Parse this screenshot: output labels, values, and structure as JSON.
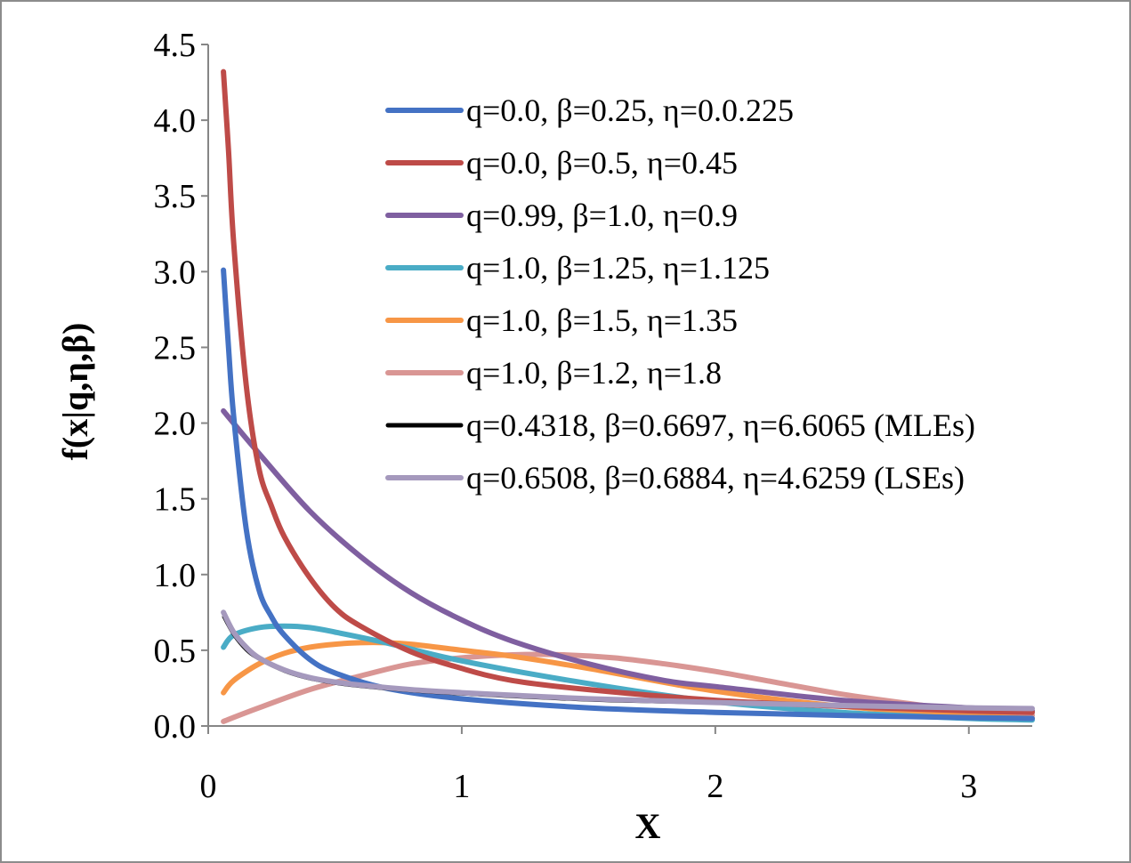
{
  "chart_data": {
    "type": "line",
    "title": "",
    "xlabel": "X",
    "ylabel": "f(x|q,η,β)",
    "xlim": [
      0,
      3.25
    ],
    "ylim": [
      0,
      4.5
    ],
    "xticks": [
      "0",
      "1",
      "2",
      "3"
    ],
    "yticks": [
      "0.0",
      "0.5",
      "1.0",
      "1.5",
      "2.0",
      "2.5",
      "3.0",
      "3.5",
      "4.0",
      "4.5"
    ],
    "grid": false,
    "legend_position": "top-right",
    "series": [
      {
        "name": "q=0.0, β=0.25, η=0.0.225",
        "color": "#4472c4",
        "x": [
          0.06,
          0.08,
          0.1,
          0.15,
          0.2,
          0.25,
          0.3,
          0.4,
          0.5,
          0.7,
          1.0,
          1.5,
          2.0,
          2.5,
          3.0,
          3.25
        ],
        "y": [
          3.01,
          2.5,
          2.05,
          1.3,
          0.9,
          0.72,
          0.6,
          0.44,
          0.35,
          0.25,
          0.18,
          0.12,
          0.09,
          0.07,
          0.055,
          0.05
        ]
      },
      {
        "name": "q=0.0, β=0.5, η=0.45",
        "color": "#be4b48",
        "x": [
          0.06,
          0.08,
          0.1,
          0.15,
          0.2,
          0.25,
          0.3,
          0.4,
          0.5,
          0.6,
          0.8,
          1.0,
          1.2,
          1.5,
          2.0,
          2.5,
          3.0,
          3.25
        ],
        "y": [
          4.32,
          3.8,
          3.2,
          2.25,
          1.7,
          1.45,
          1.25,
          0.98,
          0.78,
          0.66,
          0.49,
          0.38,
          0.3,
          0.24,
          0.17,
          0.13,
          0.1,
          0.09
        ]
      },
      {
        "name": "q=0.99, β=1.0, η=0.9",
        "color": "#7f5fa0",
        "x": [
          0.06,
          0.2,
          0.4,
          0.6,
          0.8,
          1.0,
          1.2,
          1.5,
          1.8,
          2.0,
          2.5,
          3.0,
          3.25
        ],
        "y": [
          2.08,
          1.8,
          1.42,
          1.12,
          0.88,
          0.7,
          0.56,
          0.41,
          0.3,
          0.26,
          0.17,
          0.12,
          0.1
        ]
      },
      {
        "name": "q=1.0, β=1.25, η=1.125",
        "color": "#4aacc6",
        "x": [
          0.06,
          0.1,
          0.2,
          0.3,
          0.4,
          0.5,
          0.7,
          1.0,
          1.5,
          2.0,
          2.5,
          3.0,
          3.25
        ],
        "y": [
          0.52,
          0.6,
          0.65,
          0.66,
          0.65,
          0.62,
          0.55,
          0.43,
          0.28,
          0.16,
          0.09,
          0.05,
          0.04
        ]
      },
      {
        "name": "q=1.0, β=1.5, η=1.35",
        "color": "#f79646",
        "x": [
          0.06,
          0.1,
          0.2,
          0.3,
          0.4,
          0.5,
          0.6,
          0.7,
          0.8,
          1.0,
          1.2,
          1.5,
          2.0,
          2.5,
          3.0,
          3.25
        ],
        "y": [
          0.22,
          0.3,
          0.41,
          0.48,
          0.52,
          0.54,
          0.55,
          0.55,
          0.54,
          0.5,
          0.46,
          0.38,
          0.23,
          0.13,
          0.07,
          0.05
        ]
      },
      {
        "name": "q=1.0, β=1.2, η=1.8",
        "color": "#d99694",
        "x": [
          0.06,
          0.2,
          0.4,
          0.6,
          0.8,
          1.0,
          1.2,
          1.4,
          1.6,
          1.8,
          2.0,
          2.2,
          2.5,
          2.8,
          3.0,
          3.25
        ],
        "y": [
          0.03,
          0.12,
          0.24,
          0.33,
          0.41,
          0.45,
          0.47,
          0.47,
          0.45,
          0.41,
          0.36,
          0.3,
          0.21,
          0.14,
          0.1,
          0.07
        ]
      },
      {
        "name": "q=0.4318, β=0.6697, η=6.6065 (MLEs)",
        "color": "#000000",
        "x": [
          0.06,
          0.1,
          0.15,
          0.2,
          0.3,
          0.4,
          0.5,
          0.6,
          0.8,
          1.0,
          1.5,
          2.0,
          2.5,
          3.0,
          3.25
        ],
        "y": [
          0.72,
          0.6,
          0.5,
          0.44,
          0.36,
          0.31,
          0.28,
          0.26,
          0.23,
          0.21,
          0.17,
          0.15,
          0.13,
          0.12,
          0.115
        ]
      },
      {
        "name": "q=0.6508, β=0.6884, η=4.6259 (LSEs)",
        "color": "#a599bd",
        "x": [
          0.06,
          0.1,
          0.15,
          0.2,
          0.3,
          0.4,
          0.5,
          0.6,
          0.8,
          1.0,
          1.5,
          2.0,
          2.5,
          3.0,
          3.25
        ],
        "y": [
          0.75,
          0.62,
          0.52,
          0.45,
          0.37,
          0.32,
          0.29,
          0.27,
          0.24,
          0.22,
          0.18,
          0.155,
          0.135,
          0.12,
          0.115
        ]
      }
    ]
  }
}
